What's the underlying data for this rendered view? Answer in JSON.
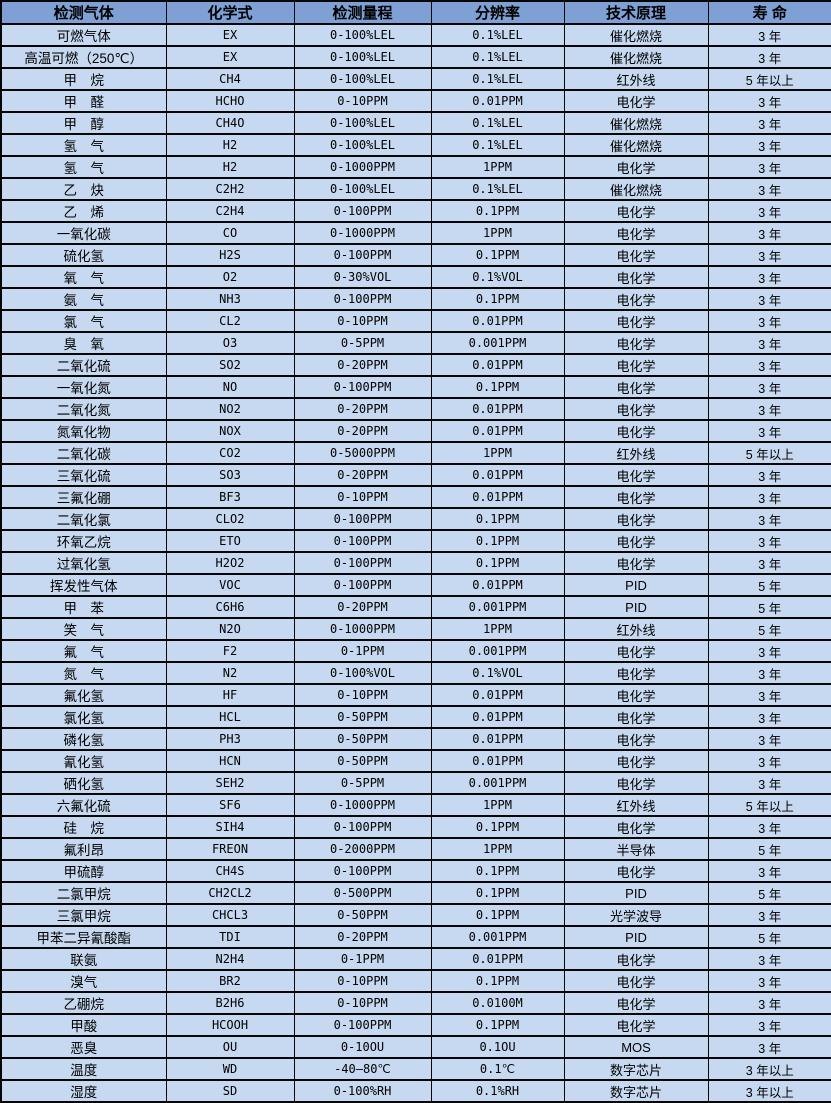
{
  "colors": {
    "header_bg": "#7ea0d4",
    "row_bg": "#c6d9f0",
    "border": "#060606"
  },
  "table": {
    "columns": [
      {
        "key": "gas",
        "label": "检测气体"
      },
      {
        "key": "formula",
        "label": "化学式"
      },
      {
        "key": "range",
        "label": "检测量程"
      },
      {
        "key": "resolution",
        "label": "分辨率"
      },
      {
        "key": "principle",
        "label": "技术原理"
      },
      {
        "key": "life",
        "label": "寿 命"
      }
    ],
    "rows": [
      {
        "gas": "可燃气体",
        "formula": "EX",
        "range": "0-100%LEL",
        "resolution": "0.1%LEL",
        "principle": "催化燃烧",
        "life": "3 年"
      },
      {
        "gas": "高温可燃（250℃）",
        "formula": "EX",
        "range": "0-100%LEL",
        "resolution": "0.1%LEL",
        "principle": "催化燃烧",
        "life": "3 年"
      },
      {
        "gas": "甲　烷",
        "formula": "CH4",
        "range": "0-100%LEL",
        "resolution": "0.1%LEL",
        "principle": "红外线",
        "life": "5 年以上"
      },
      {
        "gas": "甲　醛",
        "formula": "HCHO",
        "range": "0-10PPM",
        "resolution": "0.01PPM",
        "principle": "电化学",
        "life": "3 年"
      },
      {
        "gas": "甲　醇",
        "formula": "CH4O",
        "range": "0-100%LEL",
        "resolution": "0.1%LEL",
        "principle": "催化燃烧",
        "life": "3 年"
      },
      {
        "gas": "氢　气",
        "formula": "H2",
        "range": "0-100%LEL",
        "resolution": "0.1%LEL",
        "principle": "催化燃烧",
        "life": "3 年"
      },
      {
        "gas": "氢　气",
        "formula": "H2",
        "range": "0-1000PPM",
        "resolution": "1PPM",
        "principle": "电化学",
        "life": "3 年"
      },
      {
        "gas": "乙　炔",
        "formula": "C2H2",
        "range": "0-100%LEL",
        "resolution": "0.1%LEL",
        "principle": "催化燃烧",
        "life": "3 年"
      },
      {
        "gas": "乙　烯",
        "formula": "C2H4",
        "range": "0-100PPM",
        "resolution": "0.1PPM",
        "principle": "电化学",
        "life": "3 年"
      },
      {
        "gas": "一氧化碳",
        "formula": "CO",
        "range": "0-1000PPM",
        "resolution": "1PPM",
        "principle": "电化学",
        "life": "3 年"
      },
      {
        "gas": "硫化氢",
        "formula": "H2S",
        "range": "0-100PPM",
        "resolution": "0.1PPM",
        "principle": "电化学",
        "life": "3 年"
      },
      {
        "gas": "氧　气",
        "formula": "O2",
        "range": "0-30%VOL",
        "resolution": "0.1%VOL",
        "principle": "电化学",
        "life": "3 年"
      },
      {
        "gas": "氨　气",
        "formula": "NH3",
        "range": "0-100PPM",
        "resolution": "0.1PPM",
        "principle": "电化学",
        "life": "3 年"
      },
      {
        "gas": "氯　气",
        "formula": "CL2",
        "range": "0-10PPM",
        "resolution": "0.01PPM",
        "principle": "电化学",
        "life": "3 年"
      },
      {
        "gas": "臭　氧",
        "formula": "O3",
        "range": "0-5PPM",
        "resolution": "0.001PPM",
        "principle": "电化学",
        "life": "3 年"
      },
      {
        "gas": "二氧化硫",
        "formula": "SO2",
        "range": "0-20PPM",
        "resolution": "0.01PPM",
        "principle": "电化学",
        "life": "3 年"
      },
      {
        "gas": "一氧化氮",
        "formula": "NO",
        "range": "0-100PPM",
        "resolution": "0.1PPM",
        "principle": "电化学",
        "life": "3 年"
      },
      {
        "gas": "二氧化氮",
        "formula": "NO2",
        "range": "0-20PPM",
        "resolution": "0.01PPM",
        "principle": "电化学",
        "life": "3 年"
      },
      {
        "gas": "氮氧化物",
        "formula": "NOX",
        "range": "0-20PPM",
        "resolution": "0.01PPM",
        "principle": "电化学",
        "life": "3 年"
      },
      {
        "gas": "二氧化碳",
        "formula": "CO2",
        "range": "0-5000PPM",
        "resolution": "1PPM",
        "principle": "红外线",
        "life": "5 年以上"
      },
      {
        "gas": "三氧化硫",
        "formula": "SO3",
        "range": "0-20PPM",
        "resolution": "0.01PPM",
        "principle": "电化学",
        "life": "3 年"
      },
      {
        "gas": "三氟化硼",
        "formula": "BF3",
        "range": "0-10PPM",
        "resolution": "0.01PPM",
        "principle": "电化学",
        "life": "3 年"
      },
      {
        "gas": "二氧化氯",
        "formula": "CLO2",
        "range": "0-100PPM",
        "resolution": "0.1PPM",
        "principle": "电化学",
        "life": "3 年"
      },
      {
        "gas": "环氧乙烷",
        "formula": "ETO",
        "range": "0-100PPM",
        "resolution": "0.1PPM",
        "principle": "电化学",
        "life": "3 年"
      },
      {
        "gas": "过氧化氢",
        "formula": "H2O2",
        "range": "0-100PPM",
        "resolution": "0.1PPM",
        "principle": "电化学",
        "life": "3 年"
      },
      {
        "gas": "挥发性气体",
        "formula": "VOC",
        "range": "0-100PPM",
        "resolution": "0.01PPM",
        "principle": "PID",
        "life": "5 年"
      },
      {
        "gas": "甲　苯",
        "formula": "C6H6",
        "range": "0-20PPM",
        "resolution": "0.001PPM",
        "principle": "PID",
        "life": "5 年"
      },
      {
        "gas": "笑　气",
        "formula": "N2O",
        "range": "0-1000PPM",
        "resolution": "1PPM",
        "principle": "红外线",
        "life": "5 年"
      },
      {
        "gas": "氟　气",
        "formula": "F2",
        "range": "0-1PPM",
        "resolution": "0.001PPM",
        "principle": "电化学",
        "life": "3 年"
      },
      {
        "gas": "氮　气",
        "formula": "N2",
        "range": "0-100%VOL",
        "resolution": "0.1%VOL",
        "principle": "电化学",
        "life": "3 年"
      },
      {
        "gas": "氟化氢",
        "formula": "HF",
        "range": "0-10PPM",
        "resolution": "0.01PPM",
        "principle": "电化学",
        "life": "3 年"
      },
      {
        "gas": "氯化氢",
        "formula": "HCL",
        "range": "0-50PPM",
        "resolution": "0.01PPM",
        "principle": "电化学",
        "life": "3 年"
      },
      {
        "gas": "磷化氢",
        "formula": "PH3",
        "range": "0-50PPM",
        "resolution": "0.01PPM",
        "principle": "电化学",
        "life": "3 年"
      },
      {
        "gas": "氰化氢",
        "formula": "HCN",
        "range": "0-50PPM",
        "resolution": "0.01PPM",
        "principle": "电化学",
        "life": "3 年"
      },
      {
        "gas": "硒化氢",
        "formula": "SEH2",
        "range": "0-5PPM",
        "resolution": "0.001PPM",
        "principle": "电化学",
        "life": "3 年"
      },
      {
        "gas": "六氟化硫",
        "formula": "SF6",
        "range": "0-1000PPM",
        "resolution": "1PPM",
        "principle": "红外线",
        "life": "5 年以上"
      },
      {
        "gas": "硅　烷",
        "formula": "SIH4",
        "range": "0-100PPM",
        "resolution": "0.1PPM",
        "principle": "电化学",
        "life": "3 年"
      },
      {
        "gas": "氟利昂",
        "formula": "FREON",
        "range": "0-2000PPM",
        "resolution": "1PPM",
        "principle": "半导体",
        "life": "5 年"
      },
      {
        "gas": "甲硫醇",
        "formula": "CH4S",
        "range": "0-100PPM",
        "resolution": "0.1PPM",
        "principle": "电化学",
        "life": "3 年"
      },
      {
        "gas": "二氯甲烷",
        "formula": "CH2CL2",
        "range": "0-500PPM",
        "resolution": "0.1PPM",
        "principle": "PID",
        "life": "5 年"
      },
      {
        "gas": "三氯甲烷",
        "formula": "CHCL3",
        "range": "0-50PPM",
        "resolution": "0.1PPM",
        "principle": "光学波导",
        "life": "3 年"
      },
      {
        "gas": "甲苯二异氰酸酯",
        "formula": "TDI",
        "range": "0-20PPM",
        "resolution": "0.001PPM",
        "principle": "PID",
        "life": "5 年"
      },
      {
        "gas": "联氨",
        "formula": "N2H4",
        "range": "0-1PPM",
        "resolution": "0.01PPM",
        "principle": "电化学",
        "life": "3 年"
      },
      {
        "gas": "溴气",
        "formula": "BR2",
        "range": "0-10PPM",
        "resolution": "0.1PPM",
        "principle": "电化学",
        "life": "3 年"
      },
      {
        "gas": "乙硼烷",
        "formula": "B2H6",
        "range": "0-10PPM",
        "resolution": "0.0100M",
        "principle": "电化学",
        "life": "3 年"
      },
      {
        "gas": "甲酸",
        "formula": "HCOOH",
        "range": "0-100PPM",
        "resolution": "0.1PPM",
        "principle": "电化学",
        "life": "3 年"
      },
      {
        "gas": "恶臭",
        "formula": "OU",
        "range": "0-10OU",
        "resolution": "0.1OU",
        "principle": "MOS",
        "life": "3 年"
      },
      {
        "gas": "温度",
        "formula": "WD",
        "range": "-40—80℃",
        "resolution": "0.1℃",
        "principle": "数字芯片",
        "life": "3 年以上"
      },
      {
        "gas": "湿度",
        "formula": "SD",
        "range": "0-100%RH",
        "resolution": "0.1%RH",
        "principle": "数字芯片",
        "life": "3 年以上"
      }
    ]
  }
}
